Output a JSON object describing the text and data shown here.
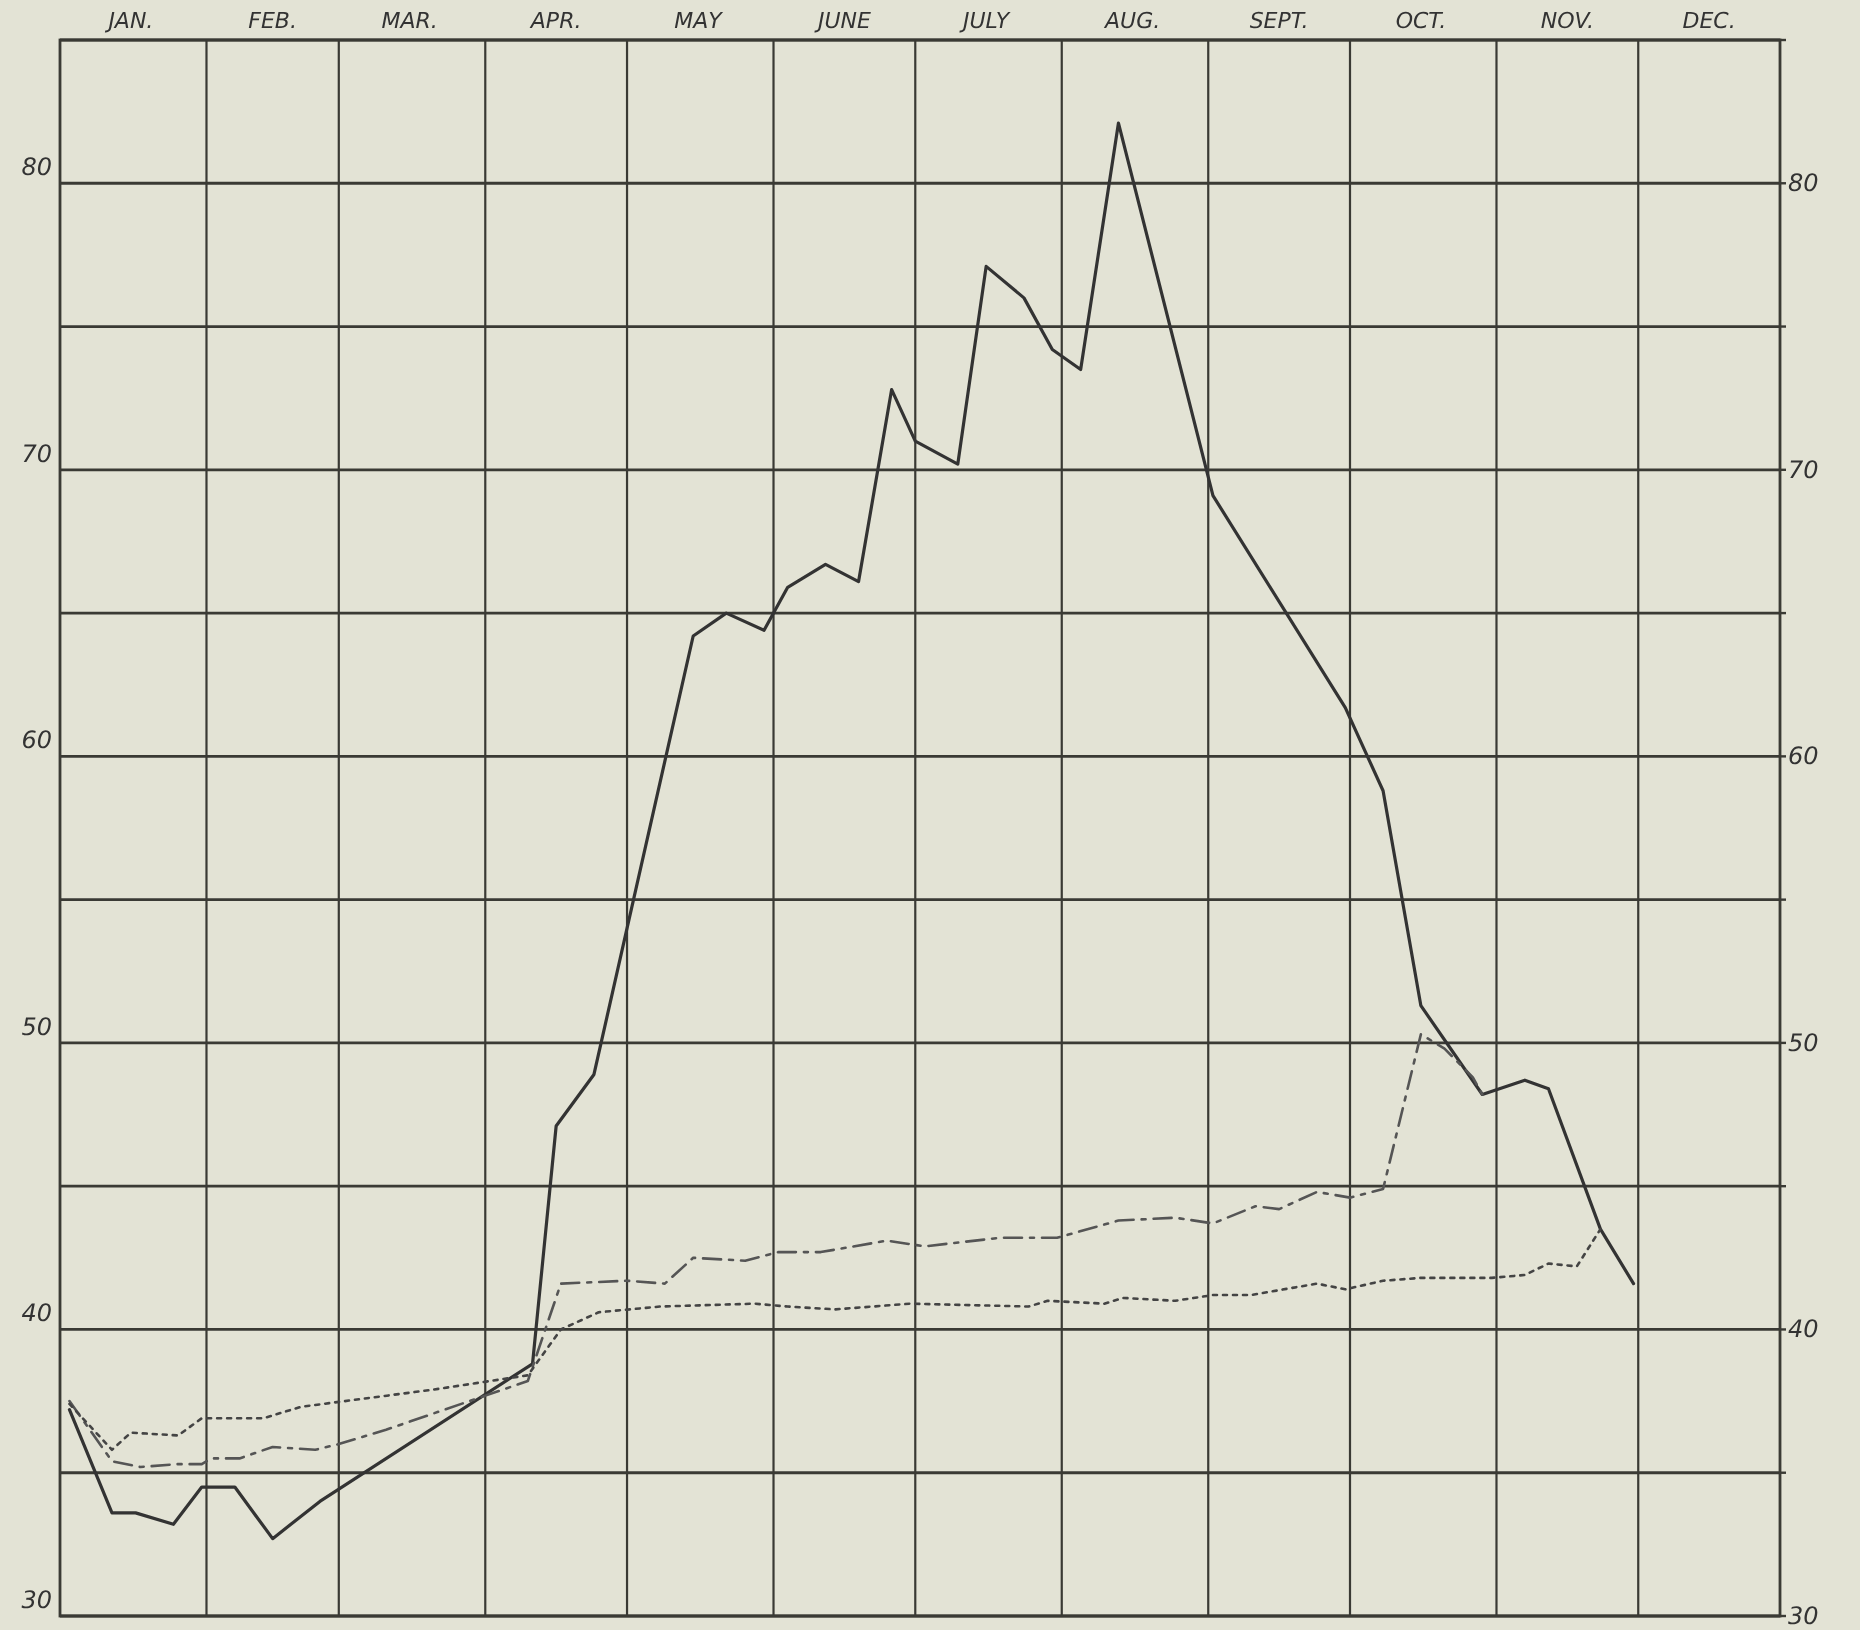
{
  "chart_data": {
    "type": "line",
    "xlim": [
      "--01-01",
      "--12-31"
    ],
    "xticks": [
      {
        "value": "--01-16",
        "label": "JAN."
      },
      {
        "value": "--02-01",
        "label": null
      },
      {
        "value": "--02-15",
        "label": "FEB."
      },
      {
        "value": "--03-01",
        "label": null
      },
      {
        "value": "--03-16",
        "label": "MAR."
      },
      {
        "value": "--04-01",
        "label": null
      },
      {
        "value": "--04-16",
        "label": "APR."
      },
      {
        "value": "--05-01",
        "label": null
      },
      {
        "value": "--05-16",
        "label": "MAY"
      },
      {
        "value": "--06-01",
        "label": null
      },
      {
        "value": "--06-16",
        "label": "JUNE"
      },
      {
        "value": "--07-01",
        "label": null
      },
      {
        "value": "--07-16",
        "label": "JULY"
      },
      {
        "value": "--08-01",
        "label": null
      },
      {
        "value": "--08-16",
        "label": "AUG."
      },
      {
        "value": "--09-01",
        "label": null
      },
      {
        "value": "--09-16",
        "label": "SEPT."
      },
      {
        "value": "--10-01",
        "label": null
      },
      {
        "value": "--10-16",
        "label": "OCT."
      },
      {
        "value": "--11-01",
        "label": null
      },
      {
        "value": "--11-16",
        "label": "NOV."
      },
      {
        "value": "--12-01",
        "label": null
      },
      {
        "value": "--12-16",
        "label": "DEC."
      }
    ],
    "ylim": [
      30,
      85
    ],
    "yticks": [
      30,
      {
        "value": 35,
        "label": null
      },
      40,
      {
        "value": 45,
        "label": null
      },
      50,
      {
        "value": 55,
        "label": null
      },
      60,
      {
        "value": 65,
        "label": null
      },
      70,
      {
        "value": 75,
        "label": null
      },
      80,
      {
        "value": 85,
        "label": null
      }
    ],
    "y2lim": [
      30,
      85
    ],
    "y2ticks": [
      30,
      {
        "value": 35,
        "label": null
      },
      40,
      {
        "value": 45,
        "label": null
      },
      50,
      {
        "value": 55,
        "label": null
      },
      60,
      {
        "value": 65,
        "label": null
      },
      70,
      {
        "value": 75,
        "label": null
      },
      80,
      {
        "value": 85,
        "label": null
      }
    ],
    "grid": true,
    "series": [
      {
        "color": "#333333",
        "line_style": "solid",
        "x": [
          "--01-03",
          "--01-12",
          "--01-17",
          "--01-25",
          "--01-31",
          "--02-07",
          "--02-15",
          "--02-25",
          "--04-11",
          "--04-16",
          "--04-24",
          "--05-15",
          "--05-22",
          "--05-30",
          "--06-04",
          "--06-12",
          "--06-19",
          "--06-26",
          "--07-01",
          "--07-10",
          "--07-16",
          "--07-24",
          "--07-30",
          "--08-05",
          "--08-13",
          "--09-02",
          "--09-30",
          "--10-08",
          "--10-16",
          "--10-29",
          "--11-07",
          "--11-12",
          "--11-23",
          "--11-30"
        ],
        "values": [
          37.2,
          33.6,
          33.6,
          33.2,
          34.5,
          34.5,
          32.7,
          34.0,
          38.8,
          47.1,
          48.9,
          64.2,
          65.0,
          64.4,
          65.9,
          66.7,
          66.1,
          72.8,
          71.0,
          70.2,
          77.1,
          76.0,
          74.2,
          73.5,
          82.1,
          69.1,
          61.7,
          58.8,
          51.3,
          48.2,
          48.7,
          48.4,
          43.5,
          41.6
        ]
      },
      {
        "color": "#555555",
        "line_style": "dashed",
        "x": [
          "--01-03",
          "--01-12",
          "--01-18",
          "--01-26",
          "--01-31",
          "--02-02",
          "--02-08",
          "--02-15",
          "--02-24",
          "--03-01",
          "--03-11",
          "--04-10",
          "--04-17",
          "--05-01",
          "--05-09",
          "--05-15",
          "--05-26",
          "--06-02",
          "--06-11",
          "--06-25",
          "--07-03",
          "--07-19",
          "--07-31",
          "--08-13",
          "--08-25",
          "--09-02",
          "--09-11",
          "--09-16",
          "--09-24",
          "--10-01",
          "--10-08",
          "--10-16",
          "--10-21",
          "--10-27",
          "--10-29"
        ],
        "values": [
          37.5,
          35.4,
          35.2,
          35.3,
          35.3,
          35.5,
          35.5,
          35.9,
          35.8,
          36.0,
          36.5,
          38.2,
          41.6,
          41.7,
          41.6,
          42.5,
          42.4,
          42.7,
          42.7,
          43.1,
          42.9,
          43.2,
          43.2,
          43.8,
          43.9,
          43.7,
          44.3,
          44.2,
          44.8,
          44.6,
          44.9,
          50.3,
          49.8,
          48.8,
          48.2
        ]
      },
      {
        "color": "#444444",
        "line_style": "dotted",
        "x": [
          "--01-03",
          "--01-12",
          "--01-16",
          "--01-26",
          "--01-31",
          "--02-13",
          "--02-21",
          "--03-07",
          "--03-21",
          "--04-10",
          "--04-17",
          "--04-25",
          "--05-08",
          "--05-28",
          "--06-04",
          "--06-14",
          "--06-30",
          "--07-25",
          "--07-29",
          "--08-10",
          "--08-14",
          "--08-25",
          "--09-02",
          "--09-10",
          "--09-24",
          "--09-30",
          "--10-08",
          "--10-16",
          "--10-31",
          "--11-07",
          "--11-12",
          "--11-18",
          "--11-23"
        ],
        "values": [
          37.4,
          35.8,
          36.4,
          36.3,
          36.9,
          36.9,
          37.3,
          37.6,
          37.9,
          38.4,
          40.0,
          40.6,
          40.8,
          40.9,
          40.8,
          40.7,
          40.9,
          40.8,
          41.0,
          40.9,
          41.1,
          41.0,
          41.2,
          41.2,
          41.6,
          41.4,
          41.7,
          41.8,
          41.8,
          41.9,
          42.3,
          42.2,
          43.5
        ]
      }
    ]
  }
}
